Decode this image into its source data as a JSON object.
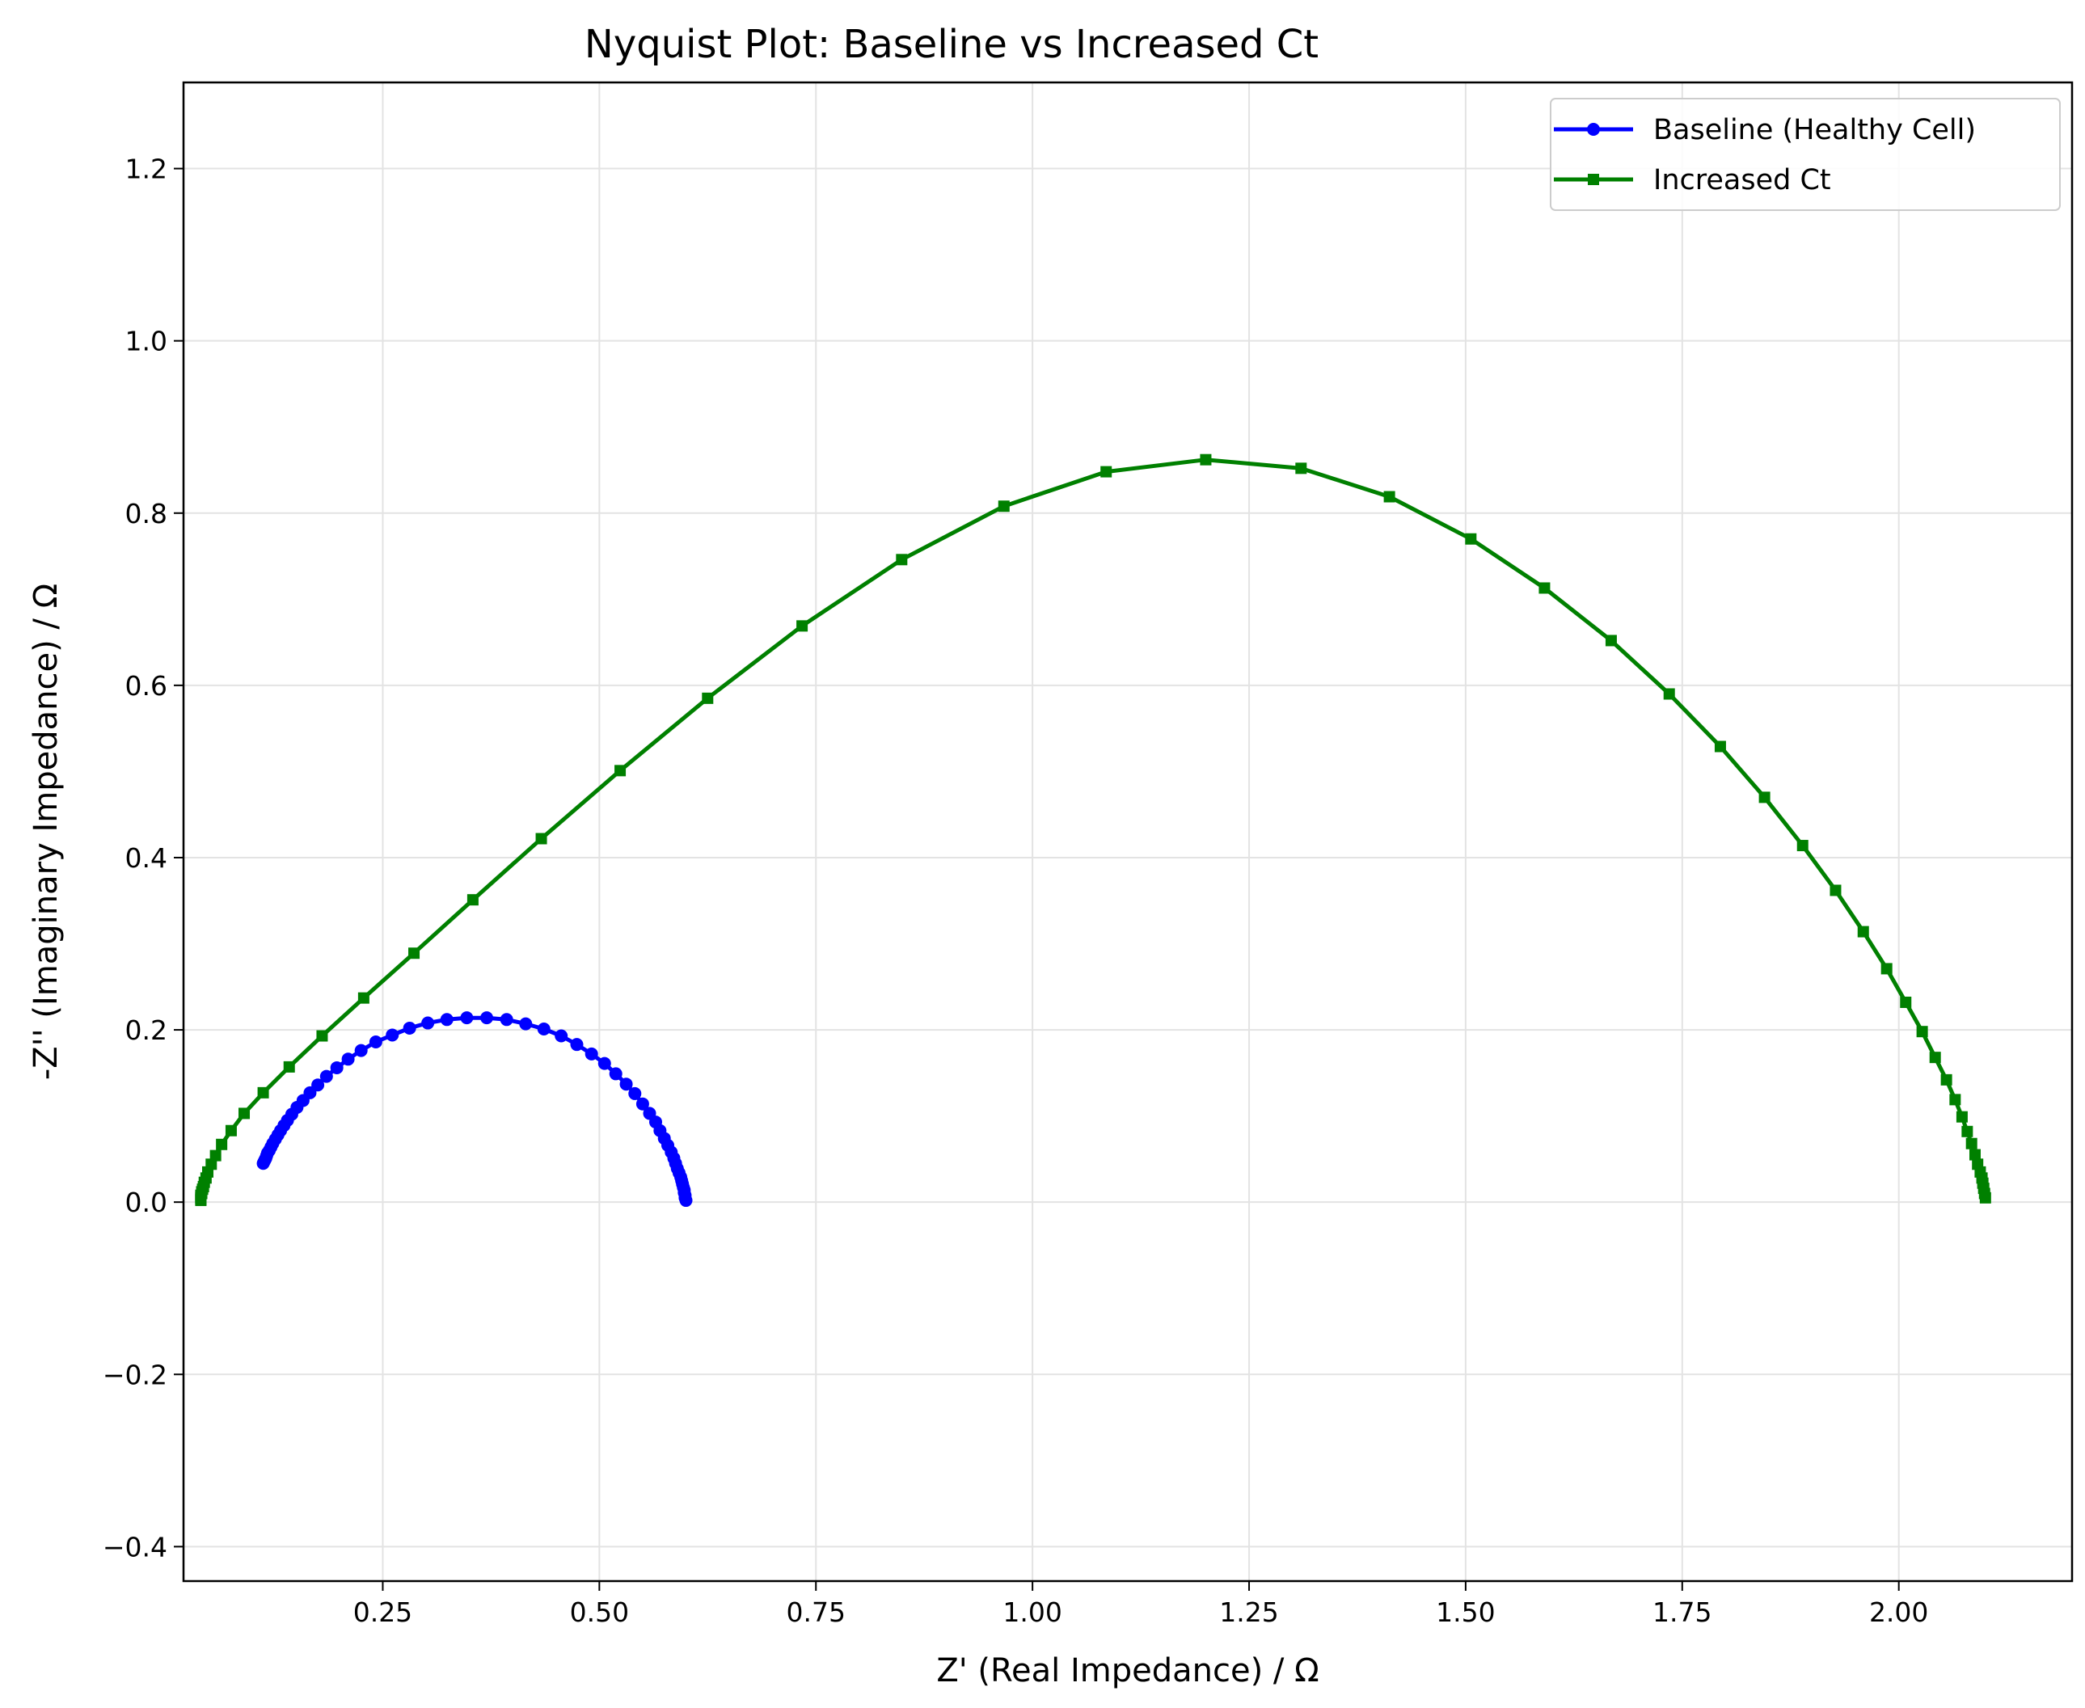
{
  "chart_data": {
    "type": "line",
    "title": "Nyquist Plot: Baseline vs Increased Ct",
    "xlabel": "Z' (Real Impedance) / Ω",
    "ylabel": "-Z'' (Imaginary Impedance) / Ω",
    "xlim": [
      0.02,
      2.2
    ],
    "ylim": [
      -0.44,
      1.3
    ],
    "xticks": [
      0.25,
      0.5,
      0.75,
      1.0,
      1.25,
      1.5,
      1.75,
      2.0
    ],
    "xtick_labels": [
      "0.25",
      "0.50",
      "0.75",
      "1.00",
      "1.25",
      "1.50",
      "1.75",
      "2.00"
    ],
    "yticks": [
      -0.4,
      -0.2,
      0.0,
      0.2,
      0.4,
      0.6,
      0.8,
      1.0,
      1.2
    ],
    "ytick_labels": [
      "−0.4",
      "−0.2",
      "0.0",
      "0.2",
      "0.4",
      "0.6",
      "0.8",
      "1.0",
      "1.2"
    ],
    "grid": true,
    "legend_position": "top-right",
    "series": [
      {
        "name": "Baseline (Healthy Cell)",
        "color": "#0000ff",
        "marker": "circle",
        "x": [
          0.6,
          0.599,
          0.599,
          0.598,
          0.598,
          0.597,
          0.596,
          0.595,
          0.594,
          0.592,
          0.59,
          0.588,
          0.586,
          0.583,
          0.579,
          0.575,
          0.57,
          0.565,
          0.558,
          0.55,
          0.541,
          0.531,
          0.519,
          0.506,
          0.491,
          0.474,
          0.456,
          0.436,
          0.415,
          0.393,
          0.37,
          0.347,
          0.324,
          0.302,
          0.281,
          0.261,
          0.242,
          0.225,
          0.21,
          0.197,
          0.185,
          0.175,
          0.166,
          0.158,
          0.151,
          0.145,
          0.14,
          0.136,
          0.132,
          0.129,
          0.126,
          0.123,
          0.121,
          0.119,
          0.117,
          0.116,
          0.115,
          0.114,
          0.113,
          0.112
        ],
        "y": [
          0.002,
          0.005,
          0.008,
          0.011,
          0.014,
          0.017,
          0.021,
          0.025,
          0.029,
          0.034,
          0.039,
          0.045,
          0.051,
          0.058,
          0.066,
          0.074,
          0.083,
          0.093,
          0.103,
          0.114,
          0.126,
          0.137,
          0.149,
          0.161,
          0.172,
          0.183,
          0.193,
          0.201,
          0.207,
          0.212,
          0.214,
          0.214,
          0.212,
          0.208,
          0.202,
          0.194,
          0.186,
          0.176,
          0.166,
          0.156,
          0.146,
          0.136,
          0.127,
          0.118,
          0.11,
          0.102,
          0.095,
          0.089,
          0.083,
          0.078,
          0.073,
          0.068,
          0.064,
          0.06,
          0.057,
          0.054,
          0.051,
          0.049,
          0.047,
          0.045
        ]
      },
      {
        "name": "Increased Ct",
        "color": "#008000",
        "marker": "square",
        "x": [
          2.1,
          2.099,
          2.098,
          2.097,
          2.096,
          2.094,
          2.091,
          2.088,
          2.084,
          2.079,
          2.073,
          2.065,
          2.055,
          2.042,
          2.027,
          2.008,
          1.986,
          1.959,
          1.927,
          1.889,
          1.845,
          1.794,
          1.735,
          1.668,
          1.591,
          1.506,
          1.412,
          1.31,
          1.2,
          1.085,
          0.967,
          0.849,
          0.734,
          0.625,
          0.524,
          0.433,
          0.354,
          0.286,
          0.228,
          0.18,
          0.142,
          0.112,
          0.09,
          0.075,
          0.064,
          0.057,
          0.052,
          0.048,
          0.046,
          0.044,
          0.043,
          0.042,
          0.041,
          0.041,
          0.04,
          0.04,
          0.04,
          0.04,
          0.04,
          0.04
        ],
        "y": [
          0.005,
          0.01,
          0.016,
          0.022,
          0.028,
          0.035,
          0.044,
          0.055,
          0.068,
          0.082,
          0.099,
          0.119,
          0.142,
          0.168,
          0.198,
          0.232,
          0.271,
          0.314,
          0.362,
          0.414,
          0.47,
          0.529,
          0.59,
          0.652,
          0.713,
          0.77,
          0.819,
          0.852,
          0.862,
          0.848,
          0.808,
          0.746,
          0.669,
          0.585,
          0.501,
          0.422,
          0.351,
          0.289,
          0.237,
          0.193,
          0.157,
          0.127,
          0.103,
          0.083,
          0.067,
          0.054,
          0.044,
          0.035,
          0.028,
          0.023,
          0.018,
          0.015,
          0.012,
          0.01,
          0.008,
          0.006,
          0.005,
          0.004,
          0.003,
          0.002
        ]
      }
    ]
  }
}
